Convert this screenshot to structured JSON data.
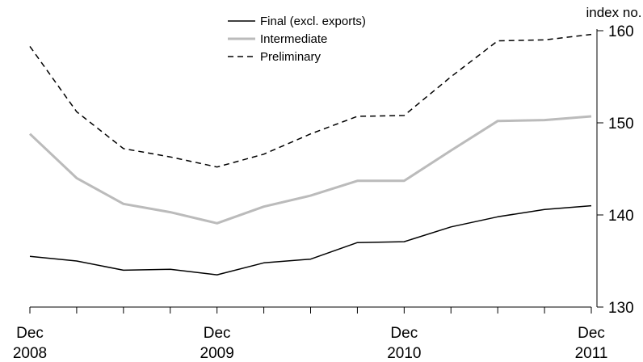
{
  "chart_data": {
    "type": "line",
    "title": "",
    "xlabel": "",
    "ylabel": "index no.",
    "x": [
      "Dec 2008",
      "Mar 2009",
      "Jun 2009",
      "Sep 2009",
      "Dec 2009",
      "Mar 2010",
      "Jun 2010",
      "Sep 2010",
      "Dec 2010",
      "Mar 2011",
      "Jun 2011",
      "Sep 2011",
      "Dec 2011"
    ],
    "x_tick_labels": [
      {
        "index": 0,
        "line1": "Dec",
        "line2": "2008"
      },
      {
        "index": 4,
        "line1": "Dec",
        "line2": "2009"
      },
      {
        "index": 8,
        "line1": "Dec",
        "line2": "2010"
      },
      {
        "index": 12,
        "line1": "Dec",
        "line2": "2011"
      }
    ],
    "ylim": [
      130,
      160
    ],
    "y_ticks": [
      130,
      140,
      150,
      160
    ],
    "y_axis_side": "right",
    "grid": false,
    "legend_position": "top-center",
    "series": [
      {
        "name": "Final (excl. exports)",
        "color": "#000000",
        "style": "solid",
        "values": [
          135.5,
          135.0,
          134.0,
          134.1,
          133.5,
          134.8,
          135.2,
          137.0,
          137.1,
          138.7,
          139.8,
          140.6,
          141.0
        ]
      },
      {
        "name": "Intermediate",
        "color": "#bbbbbb",
        "style": "solid-thick",
        "values": [
          148.8,
          144.0,
          141.2,
          140.3,
          139.1,
          140.9,
          142.1,
          143.7,
          143.7,
          147.0,
          150.2,
          150.3,
          150.7
        ]
      },
      {
        "name": "Preliminary",
        "color": "#000000",
        "style": "dashed",
        "values": [
          158.3,
          151.2,
          147.2,
          146.3,
          145.2,
          146.6,
          148.8,
          150.7,
          150.8,
          155.0,
          158.9,
          159.0,
          159.6
        ]
      }
    ]
  }
}
